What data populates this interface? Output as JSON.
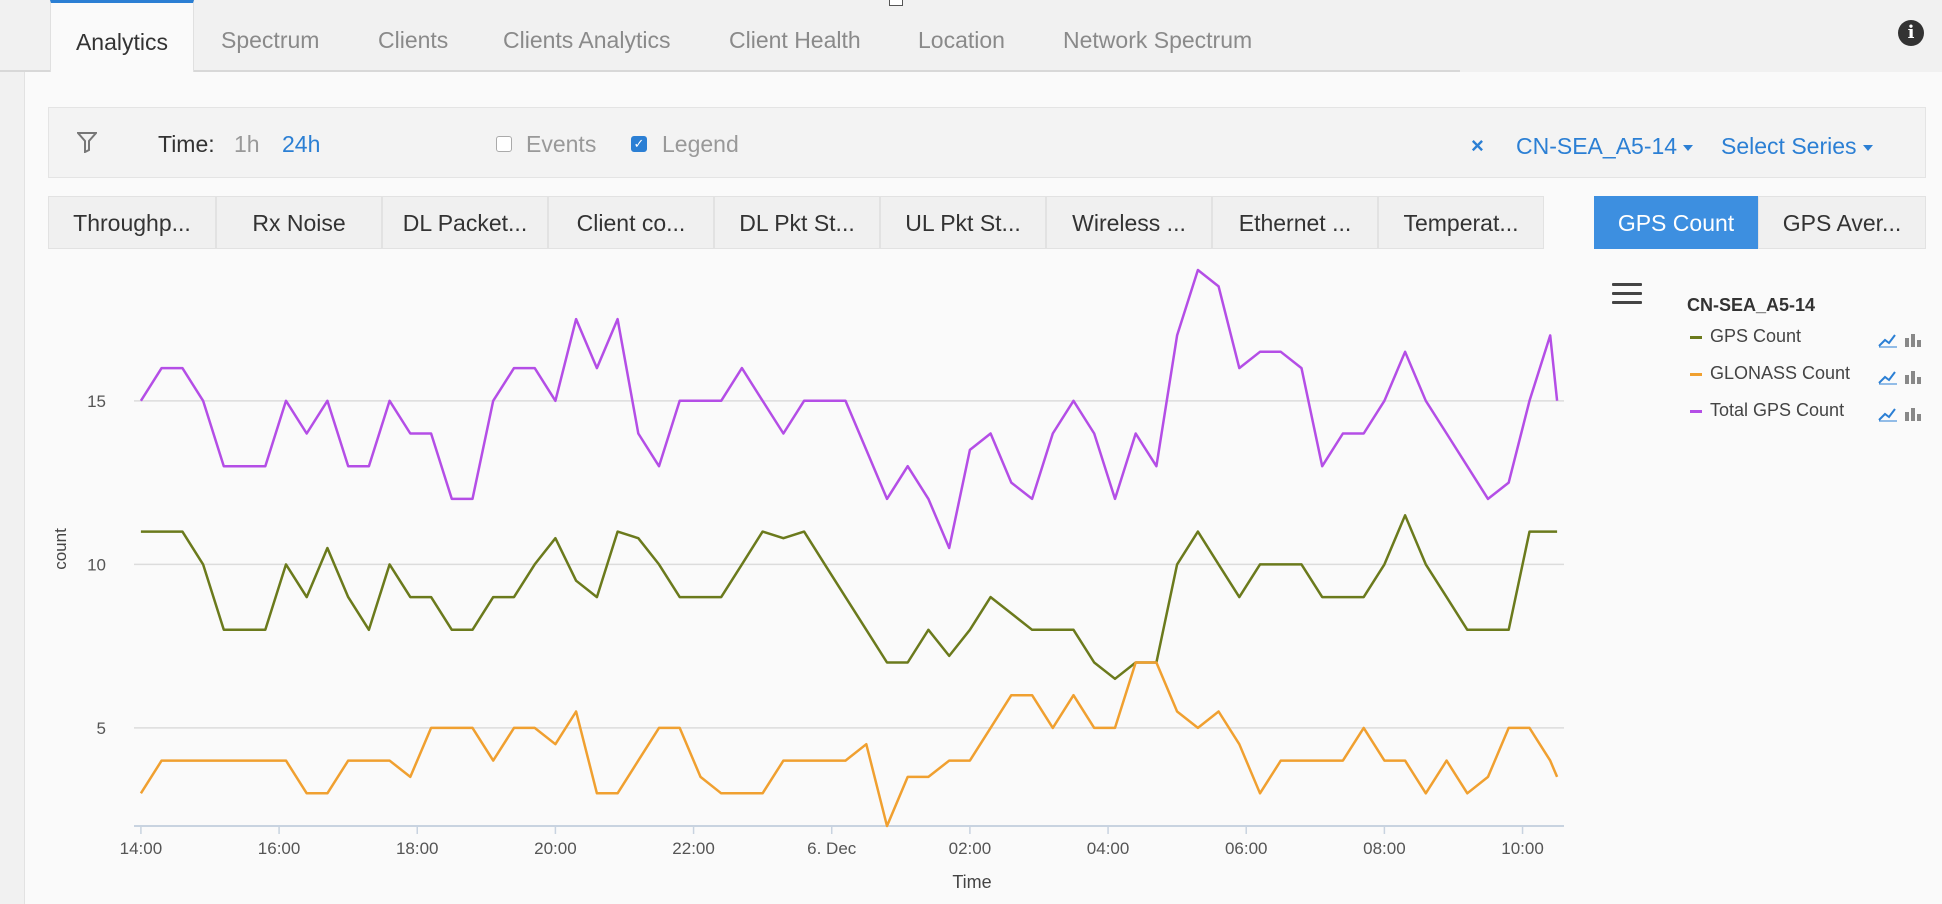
{
  "top_tabs": [
    "Analytics",
    "Spectrum",
    "Clients",
    "Clients Analytics",
    "Client Health",
    "Location",
    "Network Spectrum"
  ],
  "active_top_tab": "Analytics",
  "filter": {
    "time_label": "Time:",
    "time_options": [
      "1h",
      "24h"
    ],
    "selected_time": "24h",
    "events_label": "Events",
    "events_checked": false,
    "legend_label": "Legend",
    "legend_checked": true,
    "close_symbol": "×",
    "selected_series": "CN-SEA_A5-14",
    "select_series_label": "Select Series"
  },
  "metric_tabs": [
    "Throughp...",
    "Rx Noise",
    "DL Packet...",
    "Client co...",
    "DL Pkt St...",
    "UL Pkt St...",
    "Wireless ...",
    "Ethernet ...",
    "Temperat...",
    "GPS Count",
    "GPS Aver..."
  ],
  "active_metric_tab": "GPS Count",
  "colors": {
    "gps": "#6b7a1c",
    "glonass": "#f0a030",
    "total": "#b44ee6",
    "accent": "#2b7fd4"
  },
  "chart_data": {
    "type": "line",
    "title": "",
    "xlabel": "Time",
    "ylabel": "count",
    "x_tick_labels": [
      "14:00",
      "16:00",
      "18:00",
      "20:00",
      "22:00",
      "6. Dec",
      "02:00",
      "04:00",
      "06:00",
      "08:00",
      "10:00"
    ],
    "x_tick_hours": [
      0,
      2,
      4,
      6,
      8,
      10,
      12,
      14,
      16,
      18,
      20
    ],
    "x_range_hours": [
      -0.1,
      20.6
    ],
    "y_ticks": [
      5,
      10,
      15
    ],
    "ylim": [
      2,
      19
    ],
    "legend_title": "CN-SEA_A5-14",
    "legend_position": "right",
    "series": [
      {
        "name": "GPS Count",
        "color": "#6b7a1c",
        "x_hours": [
          0,
          0.3,
          0.6,
          0.9,
          1.2,
          1.5,
          1.8,
          2.1,
          2.4,
          2.7,
          3.0,
          3.3,
          3.6,
          3.9,
          4.2,
          4.5,
          4.8,
          5.1,
          5.4,
          5.7,
          6.0,
          6.3,
          6.6,
          6.9,
          7.2,
          7.5,
          7.8,
          8.1,
          8.4,
          8.7,
          9.0,
          9.3,
          9.6,
          9.9,
          10.2,
          10.5,
          10.8,
          11.1,
          11.4,
          11.7,
          12.0,
          12.3,
          12.6,
          12.9,
          13.2,
          13.5,
          13.8,
          14.1,
          14.4,
          14.7,
          15.0,
          15.3,
          15.6,
          15.9,
          16.2,
          16.5,
          16.8,
          17.1,
          17.4,
          17.7,
          18.0,
          18.3,
          18.6,
          18.9,
          19.2,
          19.5,
          19.8,
          20.1,
          20.4,
          20.5
        ],
        "values": [
          11,
          11,
          11,
          10,
          8,
          8,
          8,
          10,
          9,
          10.5,
          9,
          8,
          10,
          9,
          9,
          8,
          8,
          9,
          9,
          10,
          10.8,
          9.5,
          9,
          11,
          10.8,
          10,
          9,
          9,
          9,
          10,
          11,
          10.8,
          11,
          10,
          9,
          8,
          7,
          7,
          8,
          7.2,
          8,
          9,
          8.5,
          8,
          8,
          8,
          7,
          6.5,
          7,
          7,
          10,
          11,
          10,
          9,
          10,
          10,
          10,
          9,
          9,
          9,
          10,
          11.5,
          10,
          9,
          8,
          8,
          8,
          11,
          11,
          11
        ]
      },
      {
        "name": "GLONASS Count",
        "color": "#f0a030",
        "x_hours": [
          0,
          0.3,
          0.6,
          0.9,
          1.2,
          1.5,
          1.8,
          2.1,
          2.4,
          2.7,
          3.0,
          3.3,
          3.6,
          3.9,
          4.2,
          4.5,
          4.8,
          5.1,
          5.4,
          5.7,
          6.0,
          6.3,
          6.6,
          6.9,
          7.2,
          7.5,
          7.8,
          8.1,
          8.4,
          8.7,
          9.0,
          9.3,
          9.6,
          9.9,
          10.2,
          10.5,
          10.8,
          11.1,
          11.4,
          11.7,
          12.0,
          12.3,
          12.6,
          12.9,
          13.2,
          13.5,
          13.8,
          14.1,
          14.4,
          14.7,
          15.0,
          15.3,
          15.6,
          15.9,
          16.2,
          16.5,
          16.8,
          17.1,
          17.4,
          17.7,
          18.0,
          18.3,
          18.6,
          18.9,
          19.2,
          19.5,
          19.8,
          20.1,
          20.4,
          20.5
        ],
        "values": [
          3,
          4,
          4,
          4,
          4,
          4,
          4,
          4,
          3,
          3,
          4,
          4,
          4,
          3.5,
          5,
          5,
          5,
          4,
          5,
          5,
          4.5,
          5.5,
          3,
          3,
          4,
          5,
          5,
          3.5,
          3,
          3,
          3,
          4,
          4,
          4,
          4,
          4.5,
          2,
          3.5,
          3.5,
          4,
          4,
          5,
          6,
          6,
          5,
          6,
          5,
          5,
          7,
          7,
          5.5,
          5,
          5.5,
          4.5,
          3,
          4,
          4,
          4,
          4,
          5,
          4,
          4,
          3,
          4,
          3,
          3.5,
          5,
          5,
          4,
          3.5
        ]
      },
      {
        "name": "Total GPS Count",
        "color": "#b44ee6",
        "x_hours": [
          0,
          0.3,
          0.6,
          0.9,
          1.2,
          1.5,
          1.8,
          2.1,
          2.4,
          2.7,
          3.0,
          3.3,
          3.6,
          3.9,
          4.2,
          4.5,
          4.8,
          5.1,
          5.4,
          5.7,
          6.0,
          6.3,
          6.6,
          6.9,
          7.2,
          7.5,
          7.8,
          8.1,
          8.4,
          8.7,
          9.0,
          9.3,
          9.6,
          9.9,
          10.2,
          10.5,
          10.8,
          11.1,
          11.4,
          11.7,
          12.0,
          12.3,
          12.6,
          12.9,
          13.2,
          13.5,
          13.8,
          14.1,
          14.4,
          14.7,
          15.0,
          15.3,
          15.6,
          15.9,
          16.2,
          16.5,
          16.8,
          17.1,
          17.4,
          17.7,
          18.0,
          18.3,
          18.6,
          18.9,
          19.2,
          19.5,
          19.8,
          20.1,
          20.4,
          20.5
        ],
        "values": [
          15,
          16,
          16,
          15,
          13,
          13,
          13,
          15,
          14,
          15,
          13,
          13,
          15,
          14,
          14,
          12,
          12,
          15,
          16,
          16,
          15,
          17.5,
          16,
          17.5,
          14,
          13,
          15,
          15,
          15,
          16,
          15,
          14,
          15,
          15,
          15,
          13.5,
          12,
          13,
          12,
          10.5,
          13.5,
          14,
          12.5,
          12,
          14,
          15,
          14,
          12,
          14,
          13,
          17,
          19,
          18.5,
          16,
          16.5,
          16.5,
          16,
          13,
          14,
          14,
          15,
          16.5,
          15,
          14,
          13,
          12,
          12.5,
          15,
          17,
          15
        ]
      }
    ]
  }
}
